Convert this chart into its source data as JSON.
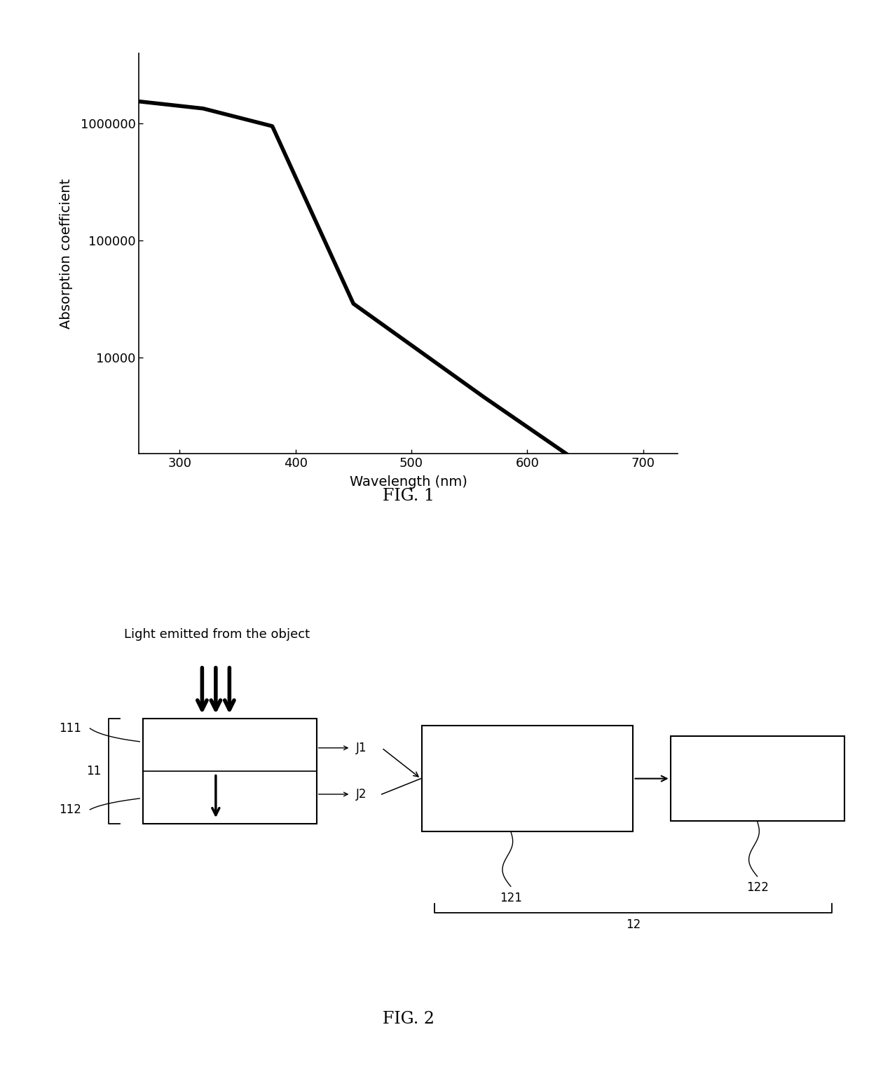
{
  "fig1": {
    "xlabel": "Wavelength (nm)",
    "ylabel": "Absorption coefficient",
    "xlim": [
      265,
      730
    ],
    "ylim_log": [
      1500,
      4000000
    ],
    "xticks": [
      300,
      400,
      500,
      600,
      700
    ],
    "yticks": [
      10000,
      100000,
      1000000
    ],
    "ytick_labels": [
      "10000",
      "100000",
      "1000000"
    ],
    "line_color": "#000000",
    "line_width": 4.0,
    "caption": "FIG. 1"
  },
  "fig2": {
    "caption": "FIG. 2",
    "label_light": "Light emitted from the object",
    "label_11": "11",
    "label_111": "111",
    "label_112": "112",
    "label_J1": "J1",
    "label_J2": "J2",
    "label_121": "121",
    "label_122": "122",
    "label_12": "12"
  },
  "bg_color": "#ffffff"
}
